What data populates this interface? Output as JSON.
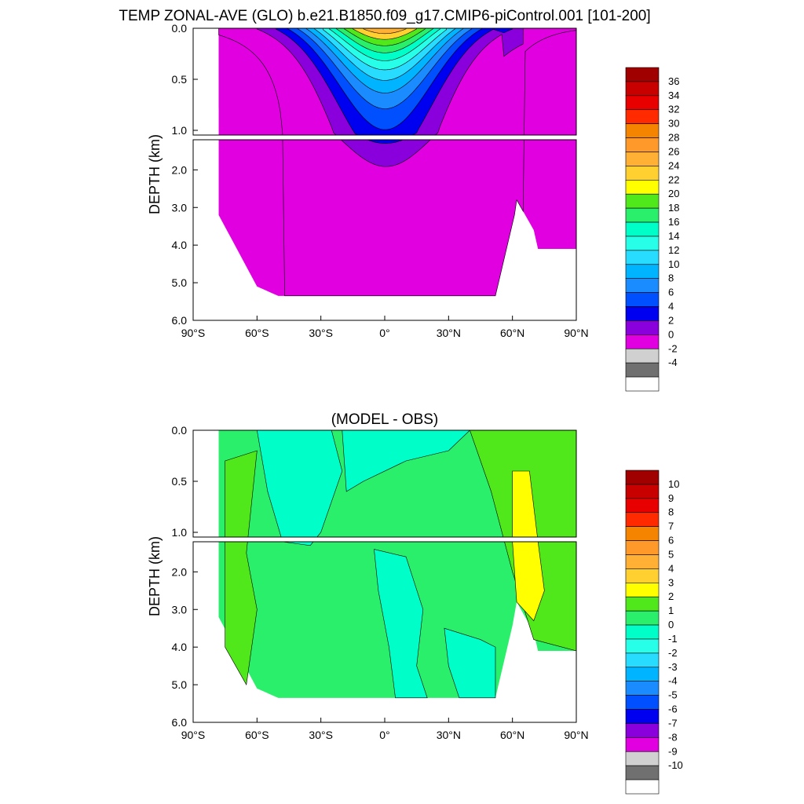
{
  "figure": {
    "title": "TEMP ZONAL-AVE (GLO) b.e21.B1850.f09_g17.CMIP6-piControl.001 [101-200]"
  },
  "chart_data": [
    {
      "type": "heatmap",
      "id": "temp",
      "title": "",
      "xlabel": "",
      "ylabel": "DEPTH (km)",
      "x_ticks": [
        "90°S",
        "60°S",
        "30°S",
        "0°",
        "30°N",
        "60°N",
        "90°N"
      ],
      "x_tick_values": [
        -90,
        -60,
        -30,
        0,
        30,
        60,
        90
      ],
      "y_ticks_upper": [
        "0.0",
        "0.5",
        "1.0"
      ],
      "y_ticks_upper_values": [
        0.0,
        0.5,
        1.0
      ],
      "y_ticks_lower": [
        "2.0",
        "3.0",
        "4.0",
        "5.0",
        "6.0"
      ],
      "y_ticks_lower_values": [
        2.0,
        3.0,
        4.0,
        5.0,
        6.0
      ],
      "colorbar": {
        "labels": [
          "36",
          "34",
          "32",
          "30",
          "28",
          "26",
          "24",
          "22",
          "20",
          "18",
          "16",
          "14",
          "12",
          "10",
          "8",
          "6",
          "4",
          "2",
          "0",
          "-2",
          "-4"
        ],
        "colors": [
          "#a00000",
          "#c80000",
          "#e80000",
          "#ff2a00",
          "#f58400",
          "#ff9a2a",
          "#ffb035",
          "#ffd030",
          "#ffff00",
          "#50e81a",
          "#2aef6a",
          "#00ffc8",
          "#28ffe8",
          "#28dcff",
          "#00b4ff",
          "#1a8cff",
          "#0050ff",
          "#0000f0",
          "#8a00dc",
          "#e000e0",
          "#d0d0d0",
          "#707070",
          "#ffffff"
        ]
      },
      "fill_layers": [
        {
          "value": 2,
          "color": "#e000e0"
        },
        {
          "value": 4,
          "color": "#8a00dc"
        },
        {
          "value": 6,
          "color": "#0000f0"
        },
        {
          "value": 8,
          "color": "#0050ff"
        },
        {
          "value": 10,
          "color": "#1a8cff"
        },
        {
          "value": 12,
          "color": "#00b4ff"
        },
        {
          "value": 14,
          "color": "#28dcff"
        },
        {
          "value": 16,
          "color": "#28ffe8"
        },
        {
          "value": 18,
          "color": "#00ffc8"
        },
        {
          "value": 20,
          "color": "#2aef6a"
        },
        {
          "value": 22,
          "color": "#50e81a"
        },
        {
          "value": 24,
          "color": "#ffd030"
        },
        {
          "value": 26,
          "color": "#ffb035"
        },
        {
          "value": 28,
          "color": "#ff9a2a"
        }
      ]
    },
    {
      "type": "heatmap",
      "id": "diff",
      "title": "(MODEL - OBS)",
      "xlabel": "",
      "ylabel": "DEPTH (km)",
      "x_ticks": [
        "90°S",
        "60°S",
        "30°S",
        "0°",
        "30°N",
        "60°N",
        "90°N"
      ],
      "x_tick_values": [
        -90,
        -60,
        -30,
        0,
        30,
        60,
        90
      ],
      "y_ticks_upper": [
        "0.0",
        "0.5",
        "1.0"
      ],
      "y_ticks_upper_values": [
        0.0,
        0.5,
        1.0
      ],
      "y_ticks_lower": [
        "2.0",
        "3.0",
        "4.0",
        "5.0",
        "6.0"
      ],
      "y_ticks_lower_values": [
        2.0,
        3.0,
        4.0,
        5.0,
        6.0
      ],
      "colorbar": {
        "labels": [
          "10",
          "9",
          "8",
          "7",
          "6",
          "5",
          "4",
          "3",
          "2",
          "1",
          "0",
          "-1",
          "-2",
          "-3",
          "-4",
          "-5",
          "-6",
          "-7",
          "-8",
          "-9",
          "-10"
        ],
        "colors": [
          "#a00000",
          "#c80000",
          "#e80000",
          "#ff2a00",
          "#f58400",
          "#ff9a2a",
          "#ffb035",
          "#ffd030",
          "#ffff00",
          "#50e81a",
          "#2aef6a",
          "#00ffc8",
          "#28ffe8",
          "#28dcff",
          "#00b4ff",
          "#1a8cff",
          "#0050ff",
          "#0000f0",
          "#8a00dc",
          "#e000e0",
          "#d0d0d0",
          "#707070",
          "#ffffff"
        ]
      }
    }
  ]
}
